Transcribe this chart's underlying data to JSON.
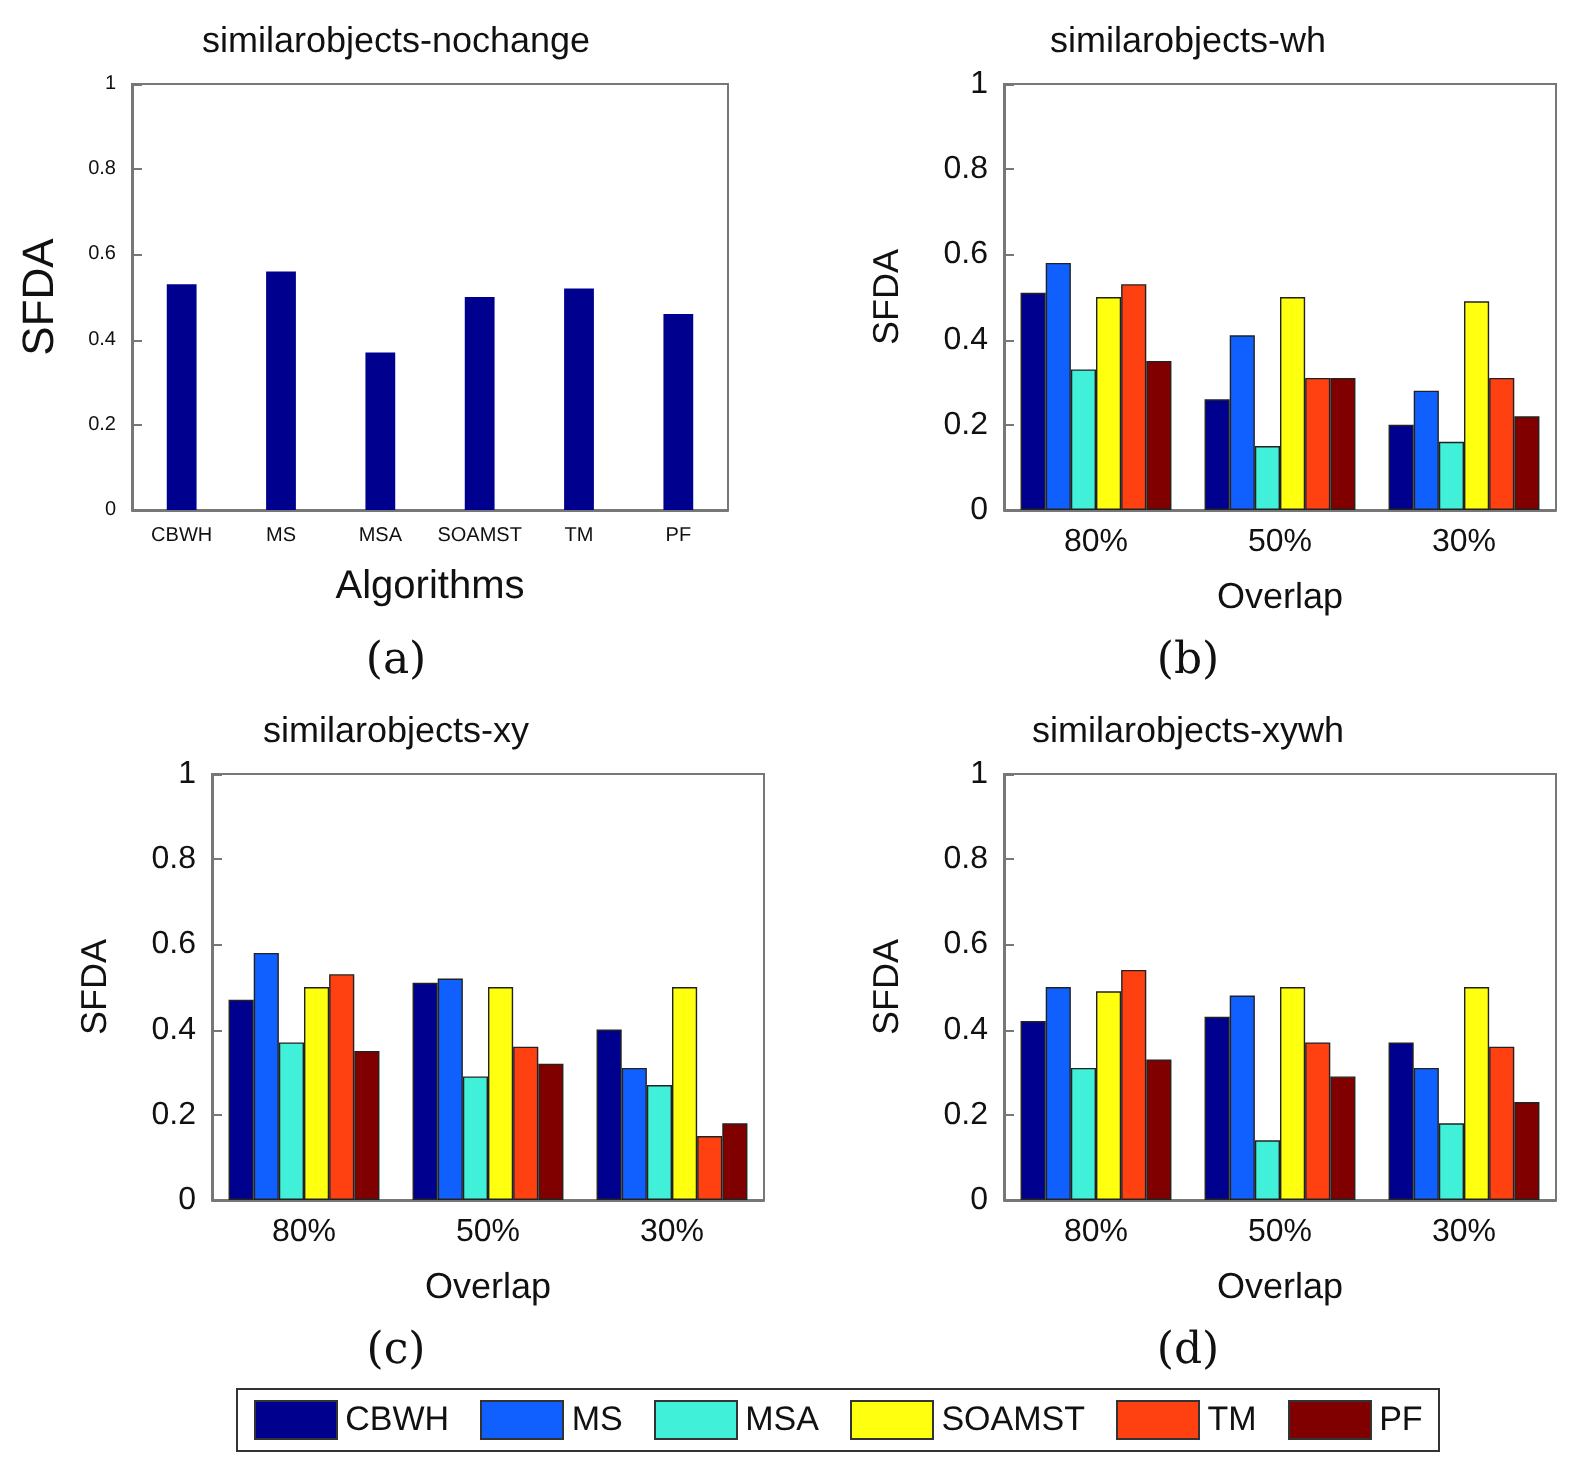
{
  "chart_data": [
    {
      "type": "bar",
      "title": "similarobjects-nochange",
      "xlabel": "Algorithms",
      "ylabel": "SFDA",
      "annotations": [
        "(a)"
      ],
      "categories": [
        "CBWH",
        "MS",
        "MSA",
        "SOAMST",
        "TM",
        "PF"
      ],
      "values": [
        0.53,
        0.56,
        0.37,
        0.5,
        0.52,
        0.46
      ],
      "color": "#00008f",
      "ylim": [
        0,
        1
      ],
      "yticks": [
        0,
        0.2,
        0.4,
        0.6,
        0.8,
        1
      ],
      "grid": false
    },
    {
      "type": "bar",
      "title": "similarobjects-wh",
      "xlabel": "Overlap",
      "ylabel": "SFDA",
      "annotations": [
        "(b)"
      ],
      "categories": [
        "80%",
        "50%",
        "30%"
      ],
      "ylim": [
        0,
        1
      ],
      "yticks": [
        0,
        0.2,
        0.4,
        0.6,
        0.8,
        1
      ],
      "grid": false,
      "legend": "bottom",
      "series": [
        {
          "name": "CBWH",
          "color": "#00008f",
          "values": [
            0.51,
            0.26,
            0.2
          ]
        },
        {
          "name": "MS",
          "color": "#1060ff",
          "values": [
            0.58,
            0.41,
            0.28
          ]
        },
        {
          "name": "MSA",
          "color": "#40f0d8",
          "values": [
            0.33,
            0.15,
            0.16
          ]
        },
        {
          "name": "SOAMST",
          "color": "#ffff10",
          "values": [
            0.5,
            0.5,
            0.49
          ]
        },
        {
          "name": "TM",
          "color": "#ff4010",
          "values": [
            0.53,
            0.31,
            0.31
          ]
        },
        {
          "name": "PF",
          "color": "#800000",
          "values": [
            0.35,
            0.31,
            0.22
          ]
        }
      ]
    },
    {
      "type": "bar",
      "title": "similarobjects-xy",
      "xlabel": "Overlap",
      "ylabel": "SFDA",
      "annotations": [
        "(c)"
      ],
      "categories": [
        "80%",
        "50%",
        "30%"
      ],
      "ylim": [
        0,
        1
      ],
      "yticks": [
        0,
        0.2,
        0.4,
        0.6,
        0.8,
        1
      ],
      "grid": false,
      "legend": "bottom",
      "series": [
        {
          "name": "CBWH",
          "color": "#00008f",
          "values": [
            0.47,
            0.51,
            0.4
          ]
        },
        {
          "name": "MS",
          "color": "#1060ff",
          "values": [
            0.58,
            0.52,
            0.31
          ]
        },
        {
          "name": "MSA",
          "color": "#40f0d8",
          "values": [
            0.37,
            0.29,
            0.27
          ]
        },
        {
          "name": "SOAMST",
          "color": "#ffff10",
          "values": [
            0.5,
            0.5,
            0.5
          ]
        },
        {
          "name": "TM",
          "color": "#ff4010",
          "values": [
            0.53,
            0.36,
            0.15
          ]
        },
        {
          "name": "PF",
          "color": "#800000",
          "values": [
            0.35,
            0.32,
            0.18
          ]
        }
      ]
    },
    {
      "type": "bar",
      "title": "similarobjects-xywh",
      "xlabel": "Overlap",
      "ylabel": "SFDA",
      "annotations": [
        "(d)"
      ],
      "categories": [
        "80%",
        "50%",
        "30%"
      ],
      "ylim": [
        0,
        1
      ],
      "yticks": [
        0,
        0.2,
        0.4,
        0.6,
        0.8,
        1
      ],
      "grid": false,
      "legend": "bottom",
      "series": [
        {
          "name": "CBWH",
          "color": "#00008f",
          "values": [
            0.42,
            0.43,
            0.37
          ]
        },
        {
          "name": "MS",
          "color": "#1060ff",
          "values": [
            0.5,
            0.48,
            0.31
          ]
        },
        {
          "name": "MSA",
          "color": "#40f0d8",
          "values": [
            0.31,
            0.14,
            0.18
          ]
        },
        {
          "name": "SOAMST",
          "color": "#ffff10",
          "values": [
            0.49,
            0.5,
            0.5
          ]
        },
        {
          "name": "TM",
          "color": "#ff4010",
          "values": [
            0.54,
            0.37,
            0.36
          ]
        },
        {
          "name": "PF",
          "color": "#800000",
          "values": [
            0.33,
            0.29,
            0.23
          ]
        }
      ]
    }
  ]
}
